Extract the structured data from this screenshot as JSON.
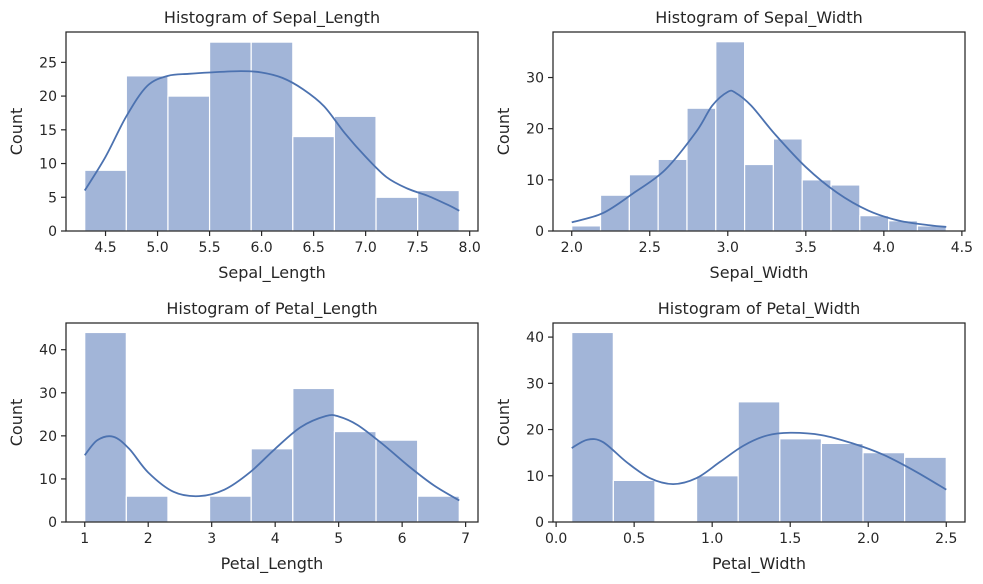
{
  "bar_color": "#a2b5d8",
  "kde_color": "#4c72b0",
  "charts": [
    {
      "name": "sepal-length",
      "title": "Histogram of Sepal_Length",
      "chart_data": {
        "type": "bar",
        "title": "Histogram of Sepal_Length",
        "xlabel": "Sepal_Length",
        "ylabel": "Count",
        "xlim": [
          4.12,
          8.08
        ],
        "ylim": [
          0,
          29.5
        ],
        "x_ticks": [
          4.5,
          5.0,
          5.5,
          6.0,
          6.5,
          7.0,
          7.5,
          8.0
        ],
        "x_tick_labels": [
          "4.5",
          "5.0",
          "5.5",
          "6.0",
          "6.5",
          "7.0",
          "7.5",
          "8.0"
        ],
        "y_ticks": [
          0,
          5,
          10,
          15,
          20,
          25
        ],
        "y_tick_labels": [
          "0",
          "5",
          "10",
          "15",
          "20",
          "25"
        ],
        "bin_edges": [
          4.3,
          4.7,
          5.1,
          5.5,
          5.9,
          6.3,
          6.7,
          7.1,
          7.5,
          7.9
        ],
        "counts": [
          9,
          23,
          20,
          28,
          28,
          14,
          17,
          5,
          6
        ],
        "kde": [
          [
            4.3,
            6
          ],
          [
            4.5,
            11
          ],
          [
            4.7,
            17
          ],
          [
            4.9,
            21.5
          ],
          [
            5.1,
            23
          ],
          [
            5.3,
            23.3
          ],
          [
            5.5,
            23.5
          ],
          [
            5.8,
            23.7
          ],
          [
            6.0,
            23.5
          ],
          [
            6.2,
            22.7
          ],
          [
            6.4,
            21
          ],
          [
            6.6,
            18.5
          ],
          [
            6.8,
            14.5
          ],
          [
            7.0,
            11
          ],
          [
            7.2,
            8
          ],
          [
            7.4,
            6.3
          ],
          [
            7.6,
            5.2
          ],
          [
            7.8,
            3.8
          ],
          [
            7.9,
            3
          ]
        ]
      }
    },
    {
      "name": "sepal-width",
      "title": "Histogram of Sepal_Width",
      "chart_data": {
        "type": "bar",
        "title": "Histogram of Sepal_Width",
        "xlabel": "Sepal_Width",
        "ylabel": "Count",
        "xlim": [
          1.88,
          4.52
        ],
        "ylim": [
          0,
          38.9
        ],
        "x_ticks": [
          2.0,
          2.5,
          3.0,
          3.5,
          4.0,
          4.5
        ],
        "x_tick_labels": [
          "2.0",
          "2.5",
          "3.0",
          "3.5",
          "4.0",
          "4.5"
        ],
        "y_ticks": [
          0,
          10,
          20,
          30
        ],
        "y_tick_labels": [
          "0",
          "10",
          "20",
          "30"
        ],
        "bin_edges": [
          2.0,
          2.1846,
          2.3692,
          2.5538,
          2.7385,
          2.9231,
          3.1077,
          3.2923,
          3.4769,
          3.6615,
          3.8462,
          4.0308,
          4.2154,
          4.4
        ],
        "counts": [
          1,
          7,
          11,
          14,
          24,
          37,
          13,
          18,
          10,
          9,
          3,
          2,
          1
        ],
        "kde": [
          [
            2.0,
            1.7
          ],
          [
            2.2,
            3.5
          ],
          [
            2.4,
            7.5
          ],
          [
            2.6,
            12
          ],
          [
            2.8,
            19.5
          ],
          [
            2.9,
            24.5
          ],
          [
            3.0,
            27.2
          ],
          [
            3.05,
            27
          ],
          [
            3.15,
            24.5
          ],
          [
            3.3,
            19
          ],
          [
            3.5,
            12.5
          ],
          [
            3.7,
            7.5
          ],
          [
            3.9,
            4
          ],
          [
            4.1,
            2
          ],
          [
            4.3,
            1.1
          ],
          [
            4.4,
            0.8
          ]
        ]
      }
    },
    {
      "name": "petal-length",
      "title": "Histogram of Petal_Length",
      "chart_data": {
        "type": "bar",
        "title": "Histogram of Petal_Length",
        "xlabel": "Petal_Length",
        "ylabel": "Count",
        "xlim": [
          0.705,
          7.195
        ],
        "ylim": [
          0,
          46.2
        ],
        "x_ticks": [
          1,
          2,
          3,
          4,
          5,
          6,
          7
        ],
        "x_tick_labels": [
          "1",
          "2",
          "3",
          "4",
          "5",
          "6",
          "7"
        ],
        "y_ticks": [
          0,
          10,
          20,
          30,
          40
        ],
        "y_tick_labels": [
          "0",
          "10",
          "20",
          "30",
          "40"
        ],
        "bin_edges": [
          1.0,
          1.6556,
          2.3111,
          2.9667,
          3.6222,
          4.2778,
          4.9333,
          5.5889,
          6.2444,
          6.9
        ],
        "counts": [
          44,
          6,
          0,
          6,
          17,
          31,
          21,
          19,
          6
        ],
        "kde": [
          [
            1.0,
            15.5
          ],
          [
            1.2,
            19
          ],
          [
            1.45,
            19.8
          ],
          [
            1.7,
            17
          ],
          [
            2.0,
            11.5
          ],
          [
            2.4,
            7
          ],
          [
            2.8,
            6
          ],
          [
            3.2,
            7.5
          ],
          [
            3.6,
            11.5
          ],
          [
            4.0,
            17
          ],
          [
            4.4,
            22
          ],
          [
            4.8,
            24.6
          ],
          [
            5.0,
            24.5
          ],
          [
            5.3,
            22.5
          ],
          [
            5.7,
            18
          ],
          [
            6.1,
            13
          ],
          [
            6.5,
            8.5
          ],
          [
            6.9,
            5
          ]
        ]
      }
    },
    {
      "name": "petal-width",
      "title": "Histogram of Petal_Width",
      "chart_data": {
        "type": "bar",
        "title": "Histogram of Petal_Width",
        "xlabel": "Petal_Width",
        "ylabel": "Count",
        "xlim": [
          -0.02,
          2.62
        ],
        "ylim": [
          0,
          43.05
        ],
        "x_ticks": [
          0.0,
          0.5,
          1.0,
          1.5,
          2.0,
          2.5
        ],
        "x_tick_labels": [
          "0.0",
          "0.5",
          "1.0",
          "1.5",
          "2.0",
          "2.5"
        ],
        "y_ticks": [
          0,
          10,
          20,
          30,
          40
        ],
        "y_tick_labels": [
          "0",
          "10",
          "20",
          "30",
          "40"
        ],
        "bin_edges": [
          0.1,
          0.3667,
          0.6333,
          0.9,
          1.1667,
          1.4333,
          1.7,
          1.9667,
          2.2333,
          2.5
        ],
        "counts": [
          41,
          9,
          0,
          10,
          26,
          18,
          17,
          15,
          14
        ],
        "kde": [
          [
            0.1,
            16
          ],
          [
            0.2,
            17.8
          ],
          [
            0.3,
            17.3
          ],
          [
            0.45,
            13
          ],
          [
            0.6,
            9.5
          ],
          [
            0.75,
            8.2
          ],
          [
            0.9,
            9.5
          ],
          [
            1.05,
            13
          ],
          [
            1.2,
            16.5
          ],
          [
            1.35,
            18.7
          ],
          [
            1.5,
            19.3
          ],
          [
            1.7,
            18.8
          ],
          [
            1.9,
            17
          ],
          [
            2.1,
            14.5
          ],
          [
            2.3,
            11
          ],
          [
            2.5,
            7
          ]
        ]
      }
    }
  ]
}
